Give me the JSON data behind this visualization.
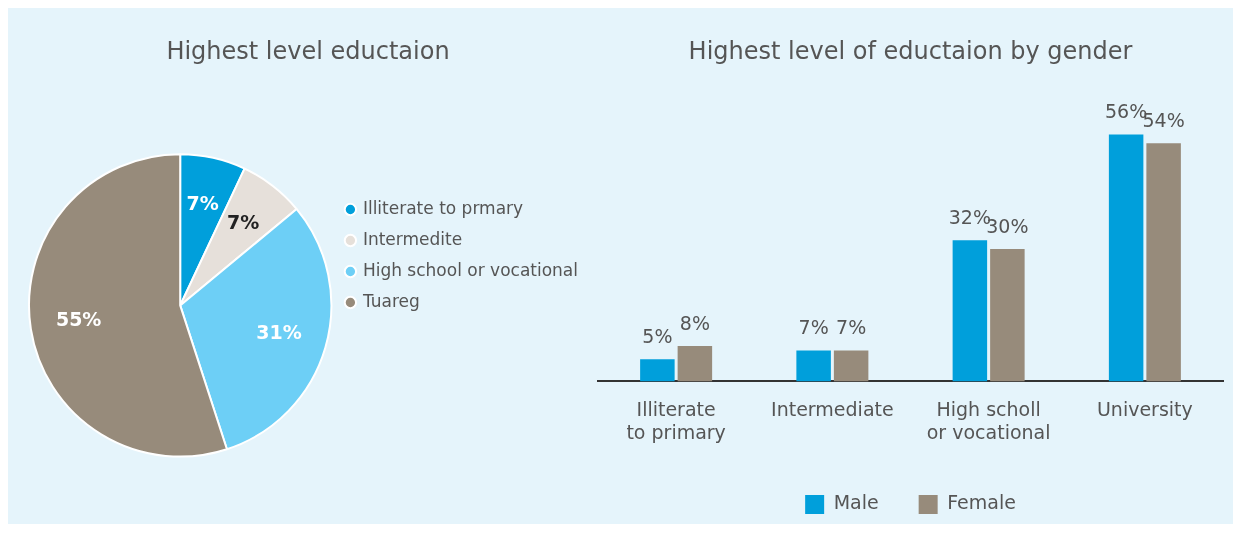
{
  "chart_data": [
    {
      "type": "pie",
      "title": "Highest level eductaion",
      "categories": [
        "Illiterate to prmary",
        "Intermedite",
        "High school or vocational",
        "Tuareg"
      ],
      "values": [
        7,
        7,
        31,
        55
      ],
      "colors": [
        "#009fdb",
        "#e6e0da",
        "#6dcff6",
        "#978b7b"
      ],
      "value_labels": [
        "7%",
        "7%",
        "31%",
        "55%"
      ],
      "legend": "right"
    },
    {
      "type": "bar",
      "title": "Highest level of eductaion by gender",
      "categories": [
        "Illiterate to primary",
        "Intermediate",
        "High scholl or vocational",
        "University"
      ],
      "series": [
        {
          "name": "Male",
          "color": "#009fdb",
          "values": [
            5,
            7,
            32,
            56
          ],
          "value_labels": [
            "5%",
            "7%",
            "32%",
            "56%"
          ]
        },
        {
          "name": "Female",
          "color": "#978b7b",
          "values": [
            8,
            7,
            30,
            54
          ],
          "value_labels": [
            "8%",
            "7%",
            "30%",
            "54%"
          ]
        }
      ],
      "legend": "bottom"
    }
  ]
}
